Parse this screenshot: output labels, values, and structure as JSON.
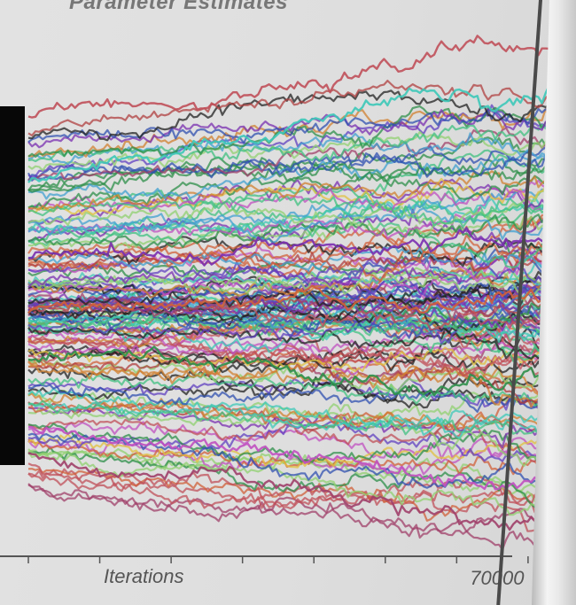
{
  "chart_data": {
    "type": "line",
    "title": "Parameter Estimates",
    "xlabel": "Iterations",
    "ylabel": "",
    "xlim": [
      0,
      72000
    ],
    "x_tick_labels": [
      {
        "value": 70000,
        "label": "70000"
      }
    ],
    "grid": false,
    "legend": "none",
    "series_count": 140,
    "series_summary": "140 parameter traces drawn as noisy random-walk lines over iterations; estimates fan out from the centre (~0) with the outer traces drifting farther apart as iterations increase.",
    "representative_series": [
      {
        "start": 4.6,
        "end": 6.3,
        "color": "#c0505a"
      },
      {
        "start": 3.0,
        "end": 5.2,
        "color": "#3cc8b8"
      },
      {
        "start": 1.2,
        "end": 1.6,
        "color": "#7a2fb0"
      },
      {
        "start": 0.0,
        "end": 0.1,
        "color": "#d0603a"
      },
      {
        "start": -1.2,
        "end": -1.6,
        "color": "#2e8f4a"
      },
      {
        "start": -2.8,
        "end": -3.9,
        "color": "#c050c0"
      },
      {
        "start": -3.4,
        "end": -4.9,
        "color": "#a0406a"
      }
    ],
    "ylim": [
      -5.5,
      6.5
    ]
  },
  "colors": {
    "background": "#dedede",
    "axis": "#555555",
    "palette": [
      "#c0505a",
      "#3cc8b8",
      "#7a2fb0",
      "#d0603a",
      "#2e8f4a",
      "#c050c0",
      "#3050b0",
      "#e0c040",
      "#40a0d0",
      "#222222",
      "#90d070",
      "#b04040",
      "#6040c0",
      "#40c080",
      "#d08030",
      "#a0406a"
    ]
  }
}
